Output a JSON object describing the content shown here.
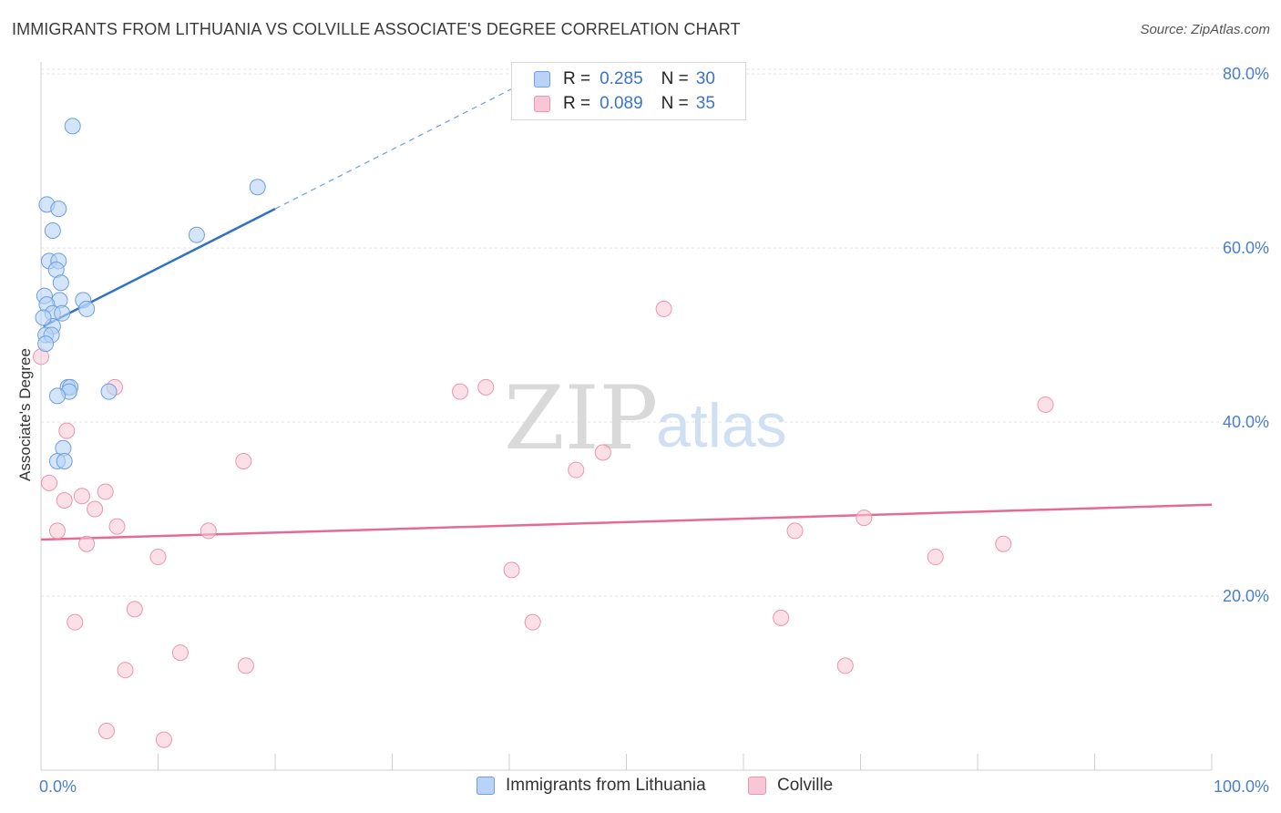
{
  "title": "IMMIGRANTS FROM LITHUANIA VS COLVILLE ASSOCIATE'S DEGREE CORRELATION CHART",
  "source": "Source: ZipAtlas.com",
  "watermark": {
    "zip": "ZIP",
    "atlas": "atlas"
  },
  "colors": {
    "blue_fill": "#b8d3f5",
    "blue_stroke": "#6e9ee0",
    "blue_line": "#2f72c8",
    "pink_fill": "#f9c6d5",
    "pink_stroke": "#ec94b0",
    "pink_line": "#e56b95",
    "tick_text": "#4a7fd0",
    "grid": "#e3e3e3"
  },
  "legend": {
    "rows": [
      {
        "r_label": "R =",
        "r_value": "0.285",
        "n_label": "N =",
        "n_value": "30"
      },
      {
        "r_label": "R =",
        "r_value": "0.089",
        "n_label": "N =",
        "n_value": "35"
      }
    ]
  },
  "bottom_legend": [
    "Immigrants from Lithuania",
    "Colville"
  ],
  "chart_data": {
    "type": "scatter",
    "title": "IMMIGRANTS FROM LITHUANIA VS COLVILLE ASSOCIATE'S DEGREE CORRELATION CHART",
    "xlabel": "",
    "ylabel": "Associate's Degree",
    "xlim": [
      0,
      100
    ],
    "ylim": [
      0,
      82
    ],
    "y_ticks": [
      {
        "value": 20,
        "label": "20.0%"
      },
      {
        "value": 40,
        "label": "40.0%"
      },
      {
        "value": 60,
        "label": "60.0%"
      },
      {
        "value": 80,
        "label": "80.0%"
      }
    ],
    "x_tick_labels": {
      "min": "0.0%",
      "max": "100.0%"
    },
    "series": [
      {
        "name": "Immigrants from Lithuania",
        "R": 0.285,
        "N": 30,
        "trend": {
          "x0": 0.2,
          "y0": 51.0,
          "x1": 20,
          "y1": 64.5,
          "dash_to_x": 42,
          "dash_to_y": 79.5
        },
        "points": [
          [
            2.7,
            74.0
          ],
          [
            18.5,
            67.0
          ],
          [
            0.5,
            65.0
          ],
          [
            1.5,
            64.5
          ],
          [
            1.0,
            62.0
          ],
          [
            13.3,
            61.5
          ],
          [
            0.7,
            58.5
          ],
          [
            1.5,
            58.5
          ],
          [
            1.3,
            57.5
          ],
          [
            1.7,
            56.0
          ],
          [
            0.3,
            54.5
          ],
          [
            1.6,
            54.0
          ],
          [
            3.6,
            54.0
          ],
          [
            0.5,
            53.5
          ],
          [
            3.9,
            53.0
          ],
          [
            1.0,
            52.5
          ],
          [
            1.8,
            52.5
          ],
          [
            1.0,
            51.0
          ],
          [
            0.4,
            50.0
          ],
          [
            0.9,
            50.0
          ],
          [
            0.4,
            49.0
          ],
          [
            2.3,
            44.0
          ],
          [
            2.5,
            44.0
          ],
          [
            2.4,
            43.5
          ],
          [
            5.8,
            43.5
          ],
          [
            1.4,
            43.0
          ],
          [
            1.9,
            37.0
          ],
          [
            1.4,
            35.5
          ],
          [
            2.0,
            35.5
          ],
          [
            0.2,
            52.0
          ]
        ]
      },
      {
        "name": "Colville",
        "R": 0.089,
        "N": 35,
        "trend": {
          "x0": 0,
          "y0": 26.5,
          "x1": 100,
          "y1": 30.5
        },
        "points": [
          [
            53.2,
            53.0
          ],
          [
            6.3,
            44.0
          ],
          [
            35.8,
            43.5
          ],
          [
            38.0,
            44.0
          ],
          [
            85.8,
            42.0
          ],
          [
            2.2,
            39.0
          ],
          [
            48.0,
            36.5
          ],
          [
            17.3,
            35.5
          ],
          [
            45.7,
            34.5
          ],
          [
            0.7,
            33.0
          ],
          [
            5.5,
            32.0
          ],
          [
            3.5,
            31.5
          ],
          [
            2.0,
            31.0
          ],
          [
            4.6,
            30.0
          ],
          [
            70.3,
            29.0
          ],
          [
            6.5,
            28.0
          ],
          [
            14.3,
            27.5
          ],
          [
            1.4,
            27.5
          ],
          [
            64.4,
            27.5
          ],
          [
            3.9,
            26.0
          ],
          [
            82.2,
            26.0
          ],
          [
            76.4,
            24.5
          ],
          [
            10.0,
            24.5
          ],
          [
            40.2,
            23.0
          ],
          [
            8.0,
            18.5
          ],
          [
            2.9,
            17.0
          ],
          [
            42.0,
            17.0
          ],
          [
            63.2,
            17.5
          ],
          [
            11.9,
            13.5
          ],
          [
            17.5,
            12.0
          ],
          [
            68.7,
            12.0
          ],
          [
            7.2,
            11.5
          ],
          [
            5.6,
            4.5
          ],
          [
            10.5,
            3.5
          ],
          [
            0.0,
            47.5
          ]
        ]
      }
    ]
  }
}
